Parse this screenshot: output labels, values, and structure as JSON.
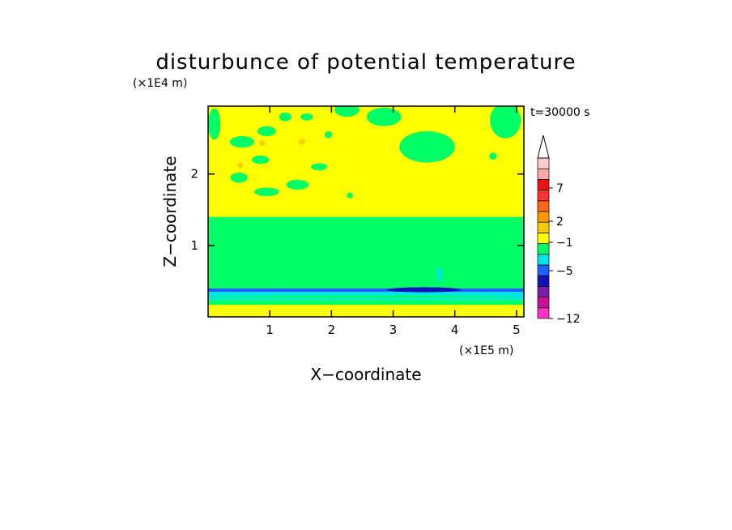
{
  "chart_data": {
    "type": "heatmap",
    "title": "disturbunce of potential temperature",
    "time_label": "t=30000 s",
    "xlabel": "X−coordinate",
    "ylabel": "Z−coordinate",
    "x_unit": "(×1E5 m)",
    "y_unit": "(×1E4 m)",
    "x_ticks": [
      "1",
      "2",
      "3",
      "4",
      "5"
    ],
    "y_ticks": [
      "1",
      "2"
    ],
    "xlim": [
      0,
      5.12
    ],
    "ylim": [
      0,
      2.95
    ],
    "colorbar_labels": [
      "7",
      "2",
      "−1",
      "−5",
      "−12"
    ],
    "colorbar_colors_bottom_to_top": [
      "#ff33cc",
      "#cc1199",
      "#7a1fa8",
      "#1111bb",
      "#1e5fff",
      "#00e6e6",
      "#00ff66",
      "#ffff00",
      "#ffcc00",
      "#ff9900",
      "#ff6611",
      "#ff3333",
      "#ee1111",
      "#ffaaaa",
      "#ffcccc"
    ],
    "bands": [
      {
        "z0": 0.0,
        "z1": 0.06,
        "color": "#ffff00"
      },
      {
        "z0": 0.06,
        "z1": 0.17,
        "color": "#ffff00"
      },
      {
        "z0": 0.17,
        "z1": 0.24,
        "color": "#00ff66"
      },
      {
        "z0": 0.24,
        "z1": 0.35,
        "color": "#00e6e6"
      },
      {
        "z0": 0.35,
        "z1": 0.4,
        "color": "#1e5fff"
      },
      {
        "z0": 0.4,
        "z1": 1.4,
        "color": "#00ff66"
      },
      {
        "z0": 1.4,
        "z1": 2.95,
        "color": "#ffff00"
      }
    ],
    "patches": [
      {
        "x": 0.1,
        "z": 2.7,
        "rx": 0.1,
        "rz": 0.22,
        "color": "#00ff66"
      },
      {
        "x": 0.55,
        "z": 2.45,
        "rx": 0.2,
        "rz": 0.08,
        "color": "#00ff66"
      },
      {
        "x": 0.95,
        "z": 2.6,
        "rx": 0.15,
        "rz": 0.07,
        "color": "#00ff66"
      },
      {
        "x": 1.25,
        "z": 2.8,
        "rx": 0.1,
        "rz": 0.06,
        "color": "#00ff66"
      },
      {
        "x": 0.85,
        "z": 2.2,
        "rx": 0.14,
        "rz": 0.06,
        "color": "#00ff66"
      },
      {
        "x": 0.5,
        "z": 1.95,
        "rx": 0.14,
        "rz": 0.07,
        "color": "#00ff66"
      },
      {
        "x": 0.95,
        "z": 1.75,
        "rx": 0.2,
        "rz": 0.06,
        "color": "#00ff66"
      },
      {
        "x": 1.45,
        "z": 1.85,
        "rx": 0.18,
        "rz": 0.07,
        "color": "#00ff66"
      },
      {
        "x": 1.8,
        "z": 2.1,
        "rx": 0.13,
        "rz": 0.05,
        "color": "#00ff66"
      },
      {
        "x": 1.6,
        "z": 2.8,
        "rx": 0.1,
        "rz": 0.05,
        "color": "#00ff66"
      },
      {
        "x": 1.95,
        "z": 2.55,
        "rx": 0.06,
        "rz": 0.05,
        "color": "#00ff66"
      },
      {
        "x": 2.25,
        "z": 2.9,
        "rx": 0.2,
        "rz": 0.1,
        "color": "#00ff66"
      },
      {
        "x": 2.85,
        "z": 2.8,
        "rx": 0.28,
        "rz": 0.13,
        "color": "#00ff66"
      },
      {
        "x": 3.55,
        "z": 2.38,
        "rx": 0.45,
        "rz": 0.22,
        "color": "#00ff66"
      },
      {
        "x": 2.3,
        "z": 1.7,
        "rx": 0.05,
        "rz": 0.04,
        "color": "#00ff66"
      },
      {
        "x": 4.62,
        "z": 2.25,
        "rx": 0.06,
        "rz": 0.05,
        "color": "#00ff66"
      },
      {
        "x": 4.82,
        "z": 2.75,
        "rx": 0.25,
        "rz": 0.25,
        "color": "#00ff66"
      },
      {
        "x": 2.5,
        "z": 0.28,
        "rx": 2.55,
        "rz": 0.018,
        "color": "#00ff66"
      },
      {
        "x": 3.75,
        "z": 0.6,
        "rx": 0.04,
        "rz": 0.1,
        "color": "#00e6e6"
      },
      {
        "x": 3.5,
        "z": 0.38,
        "rx": 0.6,
        "rz": 0.035,
        "color": "#1111bb"
      },
      {
        "x": 0.88,
        "z": 2.43,
        "rx": 0.05,
        "rz": 0.04,
        "color": "#ffcc00"
      },
      {
        "x": 1.52,
        "z": 2.45,
        "rx": 0.05,
        "rz": 0.04,
        "color": "#ffcc00"
      },
      {
        "x": 0.52,
        "z": 2.12,
        "rx": 0.05,
        "rz": 0.04,
        "color": "#ffcc00"
      }
    ]
  }
}
